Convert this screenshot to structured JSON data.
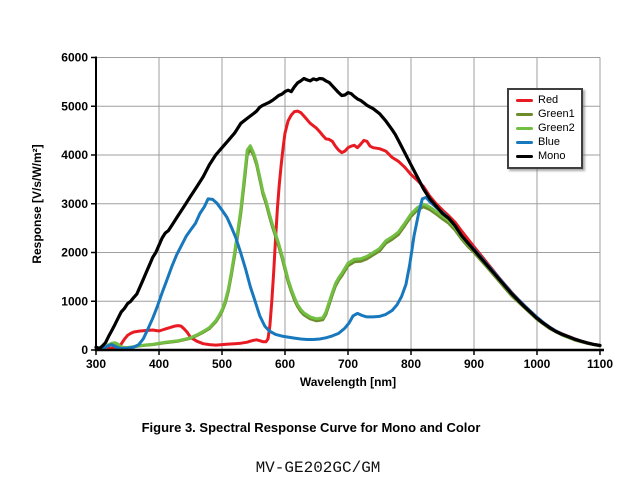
{
  "page": {
    "caption": "Figure 3. Spectral Response Curve for Mono and Color",
    "model_label": "MV-GE202GC/GM",
    "background": "#ffffff"
  },
  "chart_data": {
    "type": "line",
    "title": "",
    "xlabel": "Wavelength [nm]",
    "ylabel": "Response [V/s/W/m²]",
    "xlim": [
      300,
      1100
    ],
    "ylim": [
      0,
      6000
    ],
    "x_ticks": [
      300,
      400,
      500,
      600,
      700,
      800,
      900,
      1000,
      1100
    ],
    "y_ticks": [
      0,
      1000,
      2000,
      3000,
      4000,
      5000,
      6000
    ],
    "grid": true,
    "grid_color": "#9f9f9f",
    "axis_color": "#000000",
    "legend": {
      "position": "top-right",
      "entries": [
        "Red",
        "Green1",
        "Green2",
        "Blue",
        "Mono"
      ]
    },
    "series": [
      {
        "name": "Red",
        "color": "#e81b23",
        "x": [
          300,
          320,
          335,
          340,
          345,
          350,
          355,
          360,
          370,
          380,
          390,
          400,
          410,
          415,
          420,
          425,
          430,
          435,
          440,
          445,
          450,
          460,
          470,
          480,
          490,
          500,
          510,
          520,
          530,
          540,
          545,
          550,
          555,
          560,
          565,
          570,
          573,
          576,
          579,
          582,
          585,
          588,
          591,
          594,
          597,
          600,
          605,
          610,
          615,
          620,
          625,
          630,
          640,
          650,
          655,
          660,
          665,
          670,
          675,
          680,
          685,
          690,
          695,
          700,
          705,
          710,
          715,
          720,
          725,
          730,
          735,
          740,
          750,
          760,
          770,
          780,
          790,
          800,
          810,
          820,
          830,
          840,
          850,
          860,
          870,
          880,
          890,
          900,
          910,
          920,
          930,
          940,
          950,
          960,
          970,
          980,
          990,
          1000,
          1010,
          1020,
          1030,
          1040,
          1050,
          1060,
          1070,
          1080,
          1090,
          1100
        ],
        "y": [
          20,
          30,
          60,
          120,
          220,
          300,
          340,
          370,
          390,
          400,
          410,
          390,
          430,
          450,
          470,
          490,
          500,
          490,
          430,
          360,
          260,
          180,
          130,
          110,
          100,
          110,
          120,
          130,
          140,
          160,
          180,
          200,
          210,
          190,
          170,
          170,
          230,
          500,
          1000,
          1600,
          2300,
          2900,
          3400,
          3800,
          4150,
          4450,
          4700,
          4820,
          4890,
          4900,
          4870,
          4800,
          4650,
          4550,
          4480,
          4400,
          4330,
          4320,
          4280,
          4180,
          4100,
          4050,
          4080,
          4150,
          4180,
          4200,
          4150,
          4220,
          4300,
          4280,
          4180,
          4150,
          4130,
          4080,
          3950,
          3870,
          3750,
          3600,
          3480,
          3350,
          3150,
          3000,
          2870,
          2750,
          2620,
          2450,
          2280,
          2120,
          1960,
          1800,
          1640,
          1480,
          1330,
          1180,
          1040,
          910,
          790,
          670,
          560,
          470,
          390,
          330,
          280,
          230,
          185,
          145,
          115,
          95
        ]
      },
      {
        "name": "Green1",
        "color": "#6d8c2b",
        "x": [
          300,
          315,
          320,
          325,
          330,
          335,
          340,
          350,
          360,
          370,
          380,
          390,
          400,
          410,
          420,
          430,
          440,
          450,
          460,
          470,
          480,
          490,
          495,
          500,
          505,
          510,
          515,
          520,
          525,
          530,
          535,
          540,
          545,
          550,
          555,
          560,
          565,
          570,
          575,
          580,
          585,
          590,
          595,
          600,
          605,
          610,
          615,
          620,
          625,
          630,
          640,
          650,
          660,
          665,
          670,
          675,
          680,
          685,
          690,
          700,
          710,
          720,
          730,
          740,
          750,
          760,
          770,
          780,
          790,
          800,
          810,
          820,
          830,
          840,
          850,
          860,
          870,
          880,
          890,
          900,
          920,
          940,
          950,
          960,
          980,
          1000,
          1020,
          1040,
          1060,
          1080,
          1100
        ],
        "y": [
          10,
          55,
          100,
          130,
          140,
          110,
          55,
          45,
          65,
          85,
          100,
          110,
          130,
          150,
          165,
          180,
          210,
          240,
          295,
          360,
          440,
          575,
          670,
          790,
          960,
          1200,
          1540,
          1930,
          2370,
          2820,
          3400,
          4000,
          4120,
          4000,
          3800,
          3500,
          3200,
          3000,
          2750,
          2530,
          2330,
          2130,
          1900,
          1650,
          1400,
          1200,
          1030,
          890,
          790,
          720,
          640,
          600,
          620,
          730,
          930,
          1130,
          1310,
          1430,
          1520,
          1730,
          1810,
          1820,
          1870,
          1950,
          2030,
          2190,
          2270,
          2370,
          2550,
          2740,
          2870,
          2940,
          2880,
          2790,
          2690,
          2600,
          2460,
          2280,
          2130,
          2000,
          1710,
          1410,
          1260,
          1110,
          870,
          630,
          440,
          305,
          205,
          135,
          85
        ]
      },
      {
        "name": "Green2",
        "color": "#72bf44",
        "x": [
          300,
          315,
          320,
          325,
          330,
          335,
          340,
          350,
          360,
          370,
          380,
          390,
          400,
          410,
          420,
          430,
          440,
          450,
          460,
          470,
          480,
          490,
          495,
          500,
          505,
          510,
          515,
          520,
          525,
          530,
          535,
          540,
          545,
          550,
          555,
          560,
          565,
          570,
          575,
          580,
          585,
          590,
          595,
          600,
          605,
          610,
          615,
          620,
          625,
          630,
          640,
          650,
          660,
          665,
          670,
          675,
          680,
          685,
          690,
          700,
          710,
          720,
          730,
          740,
          750,
          760,
          770,
          780,
          790,
          800,
          810,
          820,
          830,
          840,
          850,
          860,
          870,
          880,
          890,
          900,
          920,
          940,
          950,
          960,
          980,
          1000,
          1020,
          1040,
          1060,
          1080,
          1100
        ],
        "y": [
          10,
          60,
          110,
          140,
          150,
          120,
          60,
          50,
          70,
          90,
          105,
          115,
          140,
          160,
          175,
          190,
          220,
          250,
          310,
          380,
          460,
          600,
          700,
          820,
          1000,
          1250,
          1600,
          2000,
          2450,
          2900,
          3500,
          4100,
          4190,
          4050,
          3850,
          3550,
          3250,
          3050,
          2800,
          2580,
          2380,
          2180,
          1950,
          1700,
          1450,
          1250,
          1080,
          930,
          830,
          760,
          680,
          640,
          660,
          780,
          980,
          1180,
          1360,
          1480,
          1570,
          1780,
          1860,
          1870,
          1920,
          2000,
          2080,
          2240,
          2320,
          2420,
          2600,
          2790,
          2920,
          2990,
          2930,
          2840,
          2740,
          2650,
          2510,
          2320,
          2170,
          2040,
          1740,
          1440,
          1290,
          1140,
          890,
          645,
          455,
          315,
          215,
          140,
          90
        ]
      },
      {
        "name": "Blue",
        "color": "#1878be",
        "x": [
          300,
          310,
          318,
          325,
          332,
          340,
          350,
          360,
          368,
          375,
          382,
          390,
          397,
          405,
          412,
          420,
          428,
          435,
          443,
          450,
          458,
          465,
          472,
          478,
          485,
          492,
          500,
          508,
          515,
          522,
          530,
          538,
          545,
          552,
          560,
          568,
          575,
          585,
          595,
          605,
          615,
          625,
          635,
          645,
          655,
          665,
          675,
          685,
          695,
          702,
          708,
          715,
          722,
          730,
          740,
          750,
          760,
          770,
          778,
          785,
          792,
          798,
          805,
          812,
          818,
          824,
          830,
          838,
          845,
          852,
          860,
          870,
          880,
          890,
          900,
          910,
          920,
          930,
          940,
          950,
          960,
          970,
          980,
          990,
          1000,
          1010,
          1020,
          1030,
          1040,
          1050,
          1060,
          1070,
          1080,
          1090,
          1100
        ],
        "y": [
          10,
          20,
          80,
          110,
          60,
          30,
          40,
          60,
          110,
          230,
          420,
          650,
          880,
          1180,
          1420,
          1700,
          1950,
          2130,
          2330,
          2460,
          2600,
          2800,
          2940,
          3100,
          3090,
          3010,
          2870,
          2720,
          2520,
          2300,
          1980,
          1640,
          1300,
          1020,
          700,
          490,
          390,
          320,
          285,
          265,
          245,
          225,
          215,
          215,
          225,
          250,
          290,
          340,
          450,
          560,
          700,
          750,
          710,
          680,
          680,
          690,
          730,
          810,
          930,
          1100,
          1350,
          1750,
          2350,
          2800,
          3100,
          3130,
          3040,
          2950,
          2870,
          2800,
          2700,
          2550,
          2350,
          2200,
          2070,
          1920,
          1770,
          1620,
          1470,
          1320,
          1170,
          1040,
          910,
          790,
          670,
          565,
          470,
          390,
          325,
          275,
          225,
          185,
          145,
          115,
          95
        ]
      },
      {
        "name": "Mono",
        "color": "#000000",
        "x": [
          300,
          305,
          310,
          315,
          320,
          325,
          330,
          335,
          340,
          345,
          350,
          355,
          360,
          365,
          370,
          375,
          380,
          385,
          390,
          395,
          400,
          405,
          410,
          415,
          420,
          430,
          440,
          450,
          460,
          470,
          480,
          490,
          500,
          510,
          520,
          530,
          540,
          550,
          555,
          560,
          565,
          570,
          575,
          580,
          585,
          590,
          595,
          600,
          605,
          610,
          615,
          620,
          625,
          630,
          635,
          640,
          645,
          650,
          655,
          660,
          665,
          670,
          675,
          680,
          685,
          690,
          695,
          700,
          705,
          710,
          715,
          720,
          725,
          730,
          740,
          750,
          760,
          770,
          775,
          780,
          790,
          800,
          810,
          820,
          830,
          840,
          850,
          860,
          870,
          880,
          890,
          900,
          910,
          920,
          930,
          940,
          950,
          960,
          970,
          980,
          990,
          1000,
          1010,
          1020,
          1030,
          1040,
          1050,
          1060,
          1070,
          1080,
          1090,
          1100
        ],
        "y": [
          60,
          30,
          80,
          150,
          280,
          400,
          520,
          650,
          780,
          850,
          950,
          1000,
          1080,
          1150,
          1300,
          1450,
          1600,
          1750,
          1900,
          2000,
          2150,
          2300,
          2400,
          2450,
          2550,
          2750,
          2950,
          3150,
          3350,
          3550,
          3800,
          4000,
          4150,
          4300,
          4450,
          4650,
          4750,
          4850,
          4900,
          4980,
          5020,
          5050,
          5080,
          5120,
          5170,
          5220,
          5250,
          5300,
          5330,
          5300,
          5400,
          5480,
          5520,
          5570,
          5540,
          5520,
          5560,
          5540,
          5570,
          5560,
          5520,
          5490,
          5420,
          5350,
          5280,
          5220,
          5230,
          5280,
          5260,
          5200,
          5150,
          5120,
          5070,
          5020,
          4950,
          4850,
          4700,
          4520,
          4420,
          4300,
          4050,
          3800,
          3550,
          3300,
          3100,
          2950,
          2800,
          2700,
          2550,
          2350,
          2200,
          2050,
          1900,
          1750,
          1600,
          1450,
          1300,
          1150,
          1020,
          890,
          770,
          650,
          550,
          460,
          380,
          320,
          270,
          220,
          180,
          145,
          115,
          95
        ]
      }
    ]
  }
}
